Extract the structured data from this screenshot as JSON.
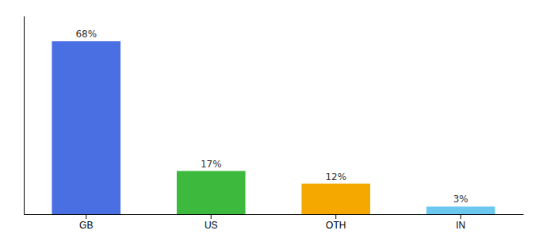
{
  "chart_data": {
    "type": "bar",
    "categories": [
      "GB",
      "US",
      "OTH",
      "IN"
    ],
    "values": [
      68,
      17,
      12,
      3
    ],
    "value_labels": [
      "68%",
      "17%",
      "12%",
      "3%"
    ],
    "colors": [
      "#4a6fe3",
      "#3dba3d",
      "#f5a800",
      "#6dc8f0"
    ],
    "ylim": [
      0,
      78
    ],
    "data_labels": true,
    "tick_labels": "x"
  }
}
